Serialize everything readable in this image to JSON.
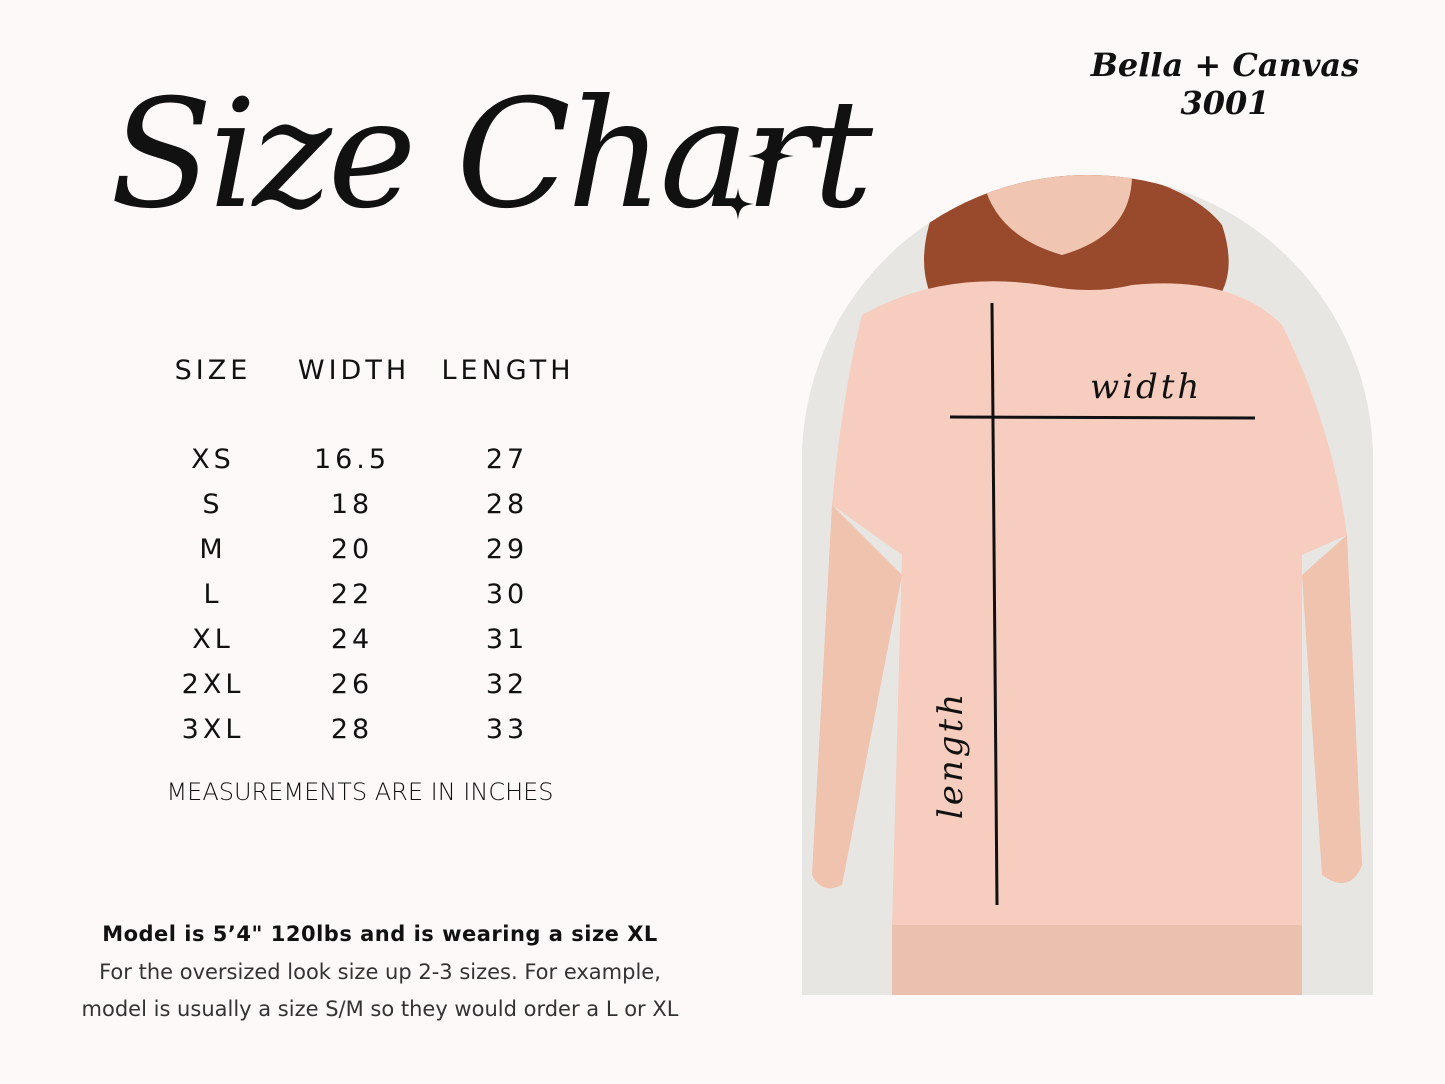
{
  "brand": "Bella + Canvas 3001",
  "title": "Size Chart",
  "table": {
    "headers": [
      "SIZE",
      "WIDTH",
      "LENGTH"
    ],
    "rows": [
      [
        "XS",
        "16.5",
        "27"
      ],
      [
        "S",
        "18",
        "28"
      ],
      [
        "M",
        "20",
        "29"
      ],
      [
        "L",
        "22",
        "30"
      ],
      [
        "XL",
        "24",
        "31"
      ],
      [
        "2XL",
        "26",
        "32"
      ],
      [
        "3XL",
        "28",
        "33"
      ]
    ]
  },
  "units_note": "MEASUREMENTS ARE IN INCHES",
  "model_info": {
    "line1": "Model is 5’4\" 120lbs and is wearing a size XL",
    "line2": "For the oversized look size up 2-3 sizes. For example,",
    "line3": "model is usually a size S/M so they would order a L or XL"
  },
  "photo_labels": {
    "width": "width",
    "length": "length"
  },
  "colors": {
    "background": "#fdf9f8",
    "shirt": "#f6cdbf",
    "text": "#111111"
  }
}
